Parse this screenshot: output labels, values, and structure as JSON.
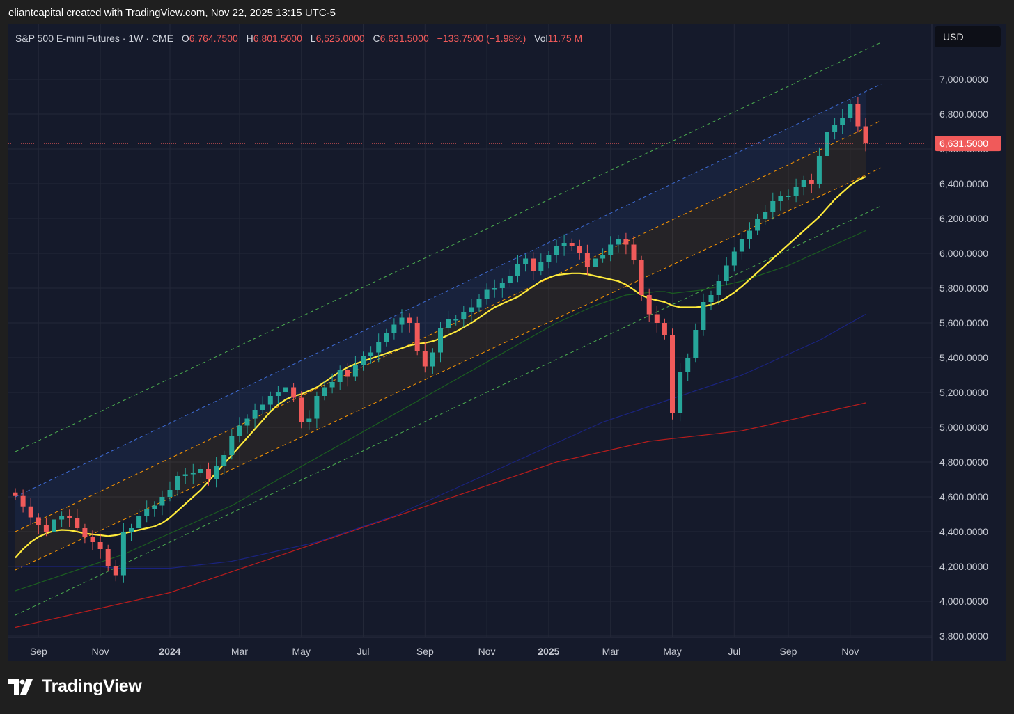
{
  "header": {
    "credit": "eliantcapital created with TradingView.com, Nov 22, 2025 13:15 UTC-5"
  },
  "legend": {
    "symbol": "S&P 500 E-mini Futures · 1W · CME",
    "o_label": "O",
    "o_value": "6,764.7500",
    "h_label": "H",
    "h_value": "6,801.5000",
    "l_label": "L",
    "l_value": "6,525.0000",
    "c_label": "C",
    "c_value": "6,631.5000",
    "change": "−133.7500 (−1.98%)",
    "vol_label": "Vol",
    "vol_value": "11.75 M"
  },
  "currency": "USD",
  "price_tag": "6,631.5000",
  "footer": {
    "brand": "TradingView"
  },
  "colors": {
    "up": "#26a69a",
    "down": "#f05a5a",
    "ema_fast": "#ffeb3b",
    "ma_green": "#1b5e20",
    "ma_blue": "#1a237e",
    "ma_red": "#b71c1c",
    "channel_outer": "#4caf50",
    "channel_upper": "#3d6bd4",
    "channel_mid": "#ff9800"
  },
  "chart_data": {
    "type": "candlestick",
    "y_ticks": [
      "7,000.0000",
      "6,800.0000",
      "6,600.0000",
      "6,400.0000",
      "6,200.0000",
      "6,000.0000",
      "5,800.0000",
      "5,600.0000",
      "5,400.0000",
      "5,200.0000",
      "5,000.0000",
      "4,800.0000",
      "4,600.0000",
      "4,400.0000",
      "4,200.0000",
      "4,000.0000",
      "3,800.0000"
    ],
    "y_tick_values": [
      7000,
      6800,
      6600,
      6400,
      6200,
      6000,
      5800,
      5600,
      5400,
      5200,
      5000,
      4800,
      4600,
      4400,
      4200,
      4000,
      3800
    ],
    "ylim": [
      3800,
      7200
    ],
    "x_ticks": [
      "Sep",
      "Nov",
      "2024",
      "Mar",
      "May",
      "Jul",
      "Sep",
      "Nov",
      "2025",
      "Mar",
      "May",
      "Jul",
      "Sep",
      "Nov"
    ],
    "x_tick_weeks": [
      3,
      11,
      20,
      29,
      37,
      45,
      53,
      61,
      69,
      77,
      85,
      93,
      100,
      108
    ],
    "x_tick_bold": [
      false,
      false,
      true,
      false,
      false,
      false,
      false,
      false,
      true,
      false,
      false,
      false,
      false,
      false
    ],
    "last_price": 6631.5,
    "weeks": 111,
    "closes": [
      4605,
      4545,
      4482,
      4440,
      4400,
      4470,
      4490,
      4480,
      4420,
      4370,
      4340,
      4300,
      4200,
      4150,
      4400,
      4420,
      4490,
      4530,
      4550,
      4600,
      4640,
      4720,
      4730,
      4740,
      4760,
      4700,
      4780,
      4840,
      4950,
      5010,
      5050,
      5100,
      5130,
      5180,
      5200,
      5230,
      5170,
      5030,
      5050,
      5180,
      5230,
      5260,
      5330,
      5290,
      5360,
      5410,
      5430,
      5490,
      5540,
      5590,
      5630,
      5600,
      5440,
      5350,
      5430,
      5570,
      5620,
      5620,
      5660,
      5690,
      5740,
      5790,
      5800,
      5830,
      5870,
      5940,
      5970,
      5900,
      5950,
      5990,
      6040,
      6060,
      6040,
      6000,
      5920,
      5970,
      5990,
      6050,
      6080,
      6050,
      5960,
      5760,
      5650,
      5600,
      5530,
      5080,
      5320,
      5400,
      5560,
      5720,
      5760,
      5840,
      5930,
      6010,
      6080,
      6130,
      6200,
      6240,
      6300,
      6330,
      6330,
      6380,
      6420,
      6400,
      6560,
      6700,
      6740,
      6780,
      6860,
      6730,
      6631.5
    ],
    "ema_fast": [
      4250,
      4300,
      4340,
      4370,
      4390,
      4405,
      4410,
      4408,
      4400,
      4390,
      4385,
      4380,
      4375,
      4380,
      4390,
      4400,
      4410,
      4420,
      4430,
      4450,
      4480,
      4520,
      4560,
      4600,
      4640,
      4690,
      4740,
      4790,
      4840,
      4890,
      4940,
      4990,
      5040,
      5090,
      5130,
      5160,
      5180,
      5190,
      5210,
      5230,
      5260,
      5290,
      5320,
      5345,
      5365,
      5380,
      5395,
      5410,
      5425,
      5440,
      5455,
      5470,
      5480,
      5485,
      5495,
      5510,
      5530,
      5550,
      5575,
      5600,
      5630,
      5660,
      5690,
      5710,
      5730,
      5750,
      5780,
      5810,
      5840,
      5860,
      5875,
      5880,
      5885,
      5885,
      5880,
      5870,
      5860,
      5850,
      5840,
      5820,
      5790,
      5760,
      5740,
      5730,
      5720,
      5700,
      5690,
      5690,
      5690,
      5695,
      5705,
      5720,
      5745,
      5775,
      5810,
      5850,
      5890,
      5930,
      5970,
      6010,
      6050,
      6090,
      6130,
      6170,
      6210,
      6260,
      6310,
      6350,
      6390,
      6420,
      6440
    ],
    "ma_green": [
      4060,
      4075,
      4090,
      4105,
      4120,
      4135,
      4150,
      4165,
      4180,
      4195,
      4210,
      4225,
      4240,
      4255,
      4270,
      4290,
      4310,
      4330,
      4350,
      4370,
      4390,
      4410,
      4430,
      4450,
      4470,
      4490,
      4510,
      4530,
      4550,
      4575,
      4600,
      4625,
      4650,
      4675,
      4700,
      4725,
      4750,
      4775,
      4800,
      4825,
      4850,
      4875,
      4900,
      4925,
      4950,
      4975,
      5000,
      5025,
      5050,
      5075,
      5100,
      5125,
      5150,
      5175,
      5200,
      5225,
      5250,
      5275,
      5300,
      5325,
      5350,
      5375,
      5400,
      5425,
      5450,
      5475,
      5500,
      5525,
      5550,
      5575,
      5600,
      5620,
      5640,
      5660,
      5680,
      5700,
      5715,
      5730,
      5745,
      5760,
      5765,
      5770,
      5775,
      5780,
      5780,
      5770,
      5775,
      5780,
      5785,
      5790,
      5800,
      5810,
      5820,
      5830,
      5840,
      5855,
      5870,
      5885,
      5900,
      5915,
      5930,
      5950,
      5970,
      5990,
      6010,
      6030,
      6050,
      6070,
      6090,
      6110,
      6130
    ],
    "ma_blue": [
      4200,
      4200,
      4200,
      4200,
      4200,
      4200,
      4200,
      4200,
      4200,
      4200,
      4200,
      4200,
      4195,
      4190,
      4190,
      4190,
      4190,
      4190,
      4190,
      4190,
      4190,
      4195,
      4200,
      4205,
      4210,
      4215,
      4220,
      4225,
      4230,
      4240,
      4250,
      4260,
      4270,
      4280,
      4290,
      4300,
      4310,
      4320,
      4330,
      4340,
      4355,
      4370,
      4385,
      4400,
      4415,
      4430,
      4445,
      4460,
      4475,
      4490,
      4510,
      4530,
      4550,
      4570,
      4590,
      4610,
      4630,
      4650,
      4670,
      4690,
      4710,
      4730,
      4750,
      4770,
      4790,
      4810,
      4830,
      4850,
      4870,
      4890,
      4910,
      4930,
      4950,
      4970,
      4990,
      5010,
      5030,
      5045,
      5060,
      5075,
      5090,
      5105,
      5120,
      5135,
      5150,
      5165,
      5180,
      5195,
      5210,
      5225,
      5240,
      5255,
      5270,
      5285,
      5300,
      5320,
      5340,
      5360,
      5380,
      5400,
      5420,
      5440,
      5460,
      5480,
      5500,
      5525,
      5550,
      5575,
      5600,
      5625,
      5650
    ],
    "ma_red": [
      3850,
      3860,
      3870,
      3880,
      3890,
      3900,
      3910,
      3920,
      3930,
      3940,
      3950,
      3960,
      3970,
      3980,
      3990,
      4000,
      4010,
      4020,
      4030,
      4040,
      4050,
      4065,
      4080,
      4095,
      4110,
      4125,
      4140,
      4155,
      4170,
      4185,
      4200,
      4215,
      4230,
      4245,
      4260,
      4275,
      4290,
      4305,
      4320,
      4335,
      4350,
      4365,
      4380,
      4395,
      4410,
      4425,
      4440,
      4455,
      4470,
      4485,
      4500,
      4515,
      4530,
      4545,
      4560,
      4575,
      4590,
      4605,
      4620,
      4635,
      4650,
      4665,
      4680,
      4695,
      4710,
      4725,
      4740,
      4755,
      4770,
      4785,
      4800,
      4810,
      4820,
      4830,
      4840,
      4850,
      4860,
      4870,
      4880,
      4890,
      4900,
      4910,
      4920,
      4925,
      4930,
      4935,
      4940,
      4945,
      4950,
      4955,
      4960,
      4965,
      4970,
      4975,
      4980,
      4990,
      5000,
      5010,
      5020,
      5030,
      5040,
      5050,
      5060,
      5070,
      5080,
      5090,
      5100,
      5110,
      5120,
      5130,
      5140
    ],
    "channel": {
      "outer_upper": [
        [
          0,
          4860
        ],
        [
          110,
          7170
        ]
      ],
      "upper": [
        [
          0,
          4600
        ],
        [
          110,
          6930
        ]
      ],
      "mid_upper": [
        [
          0,
          4400
        ],
        [
          110,
          6720
        ]
      ],
      "mid_lower": [
        [
          0,
          4180
        ],
        [
          110,
          6450
        ]
      ],
      "outer_lower": [
        [
          0,
          3920
        ],
        [
          110,
          6230
        ]
      ]
    }
  }
}
